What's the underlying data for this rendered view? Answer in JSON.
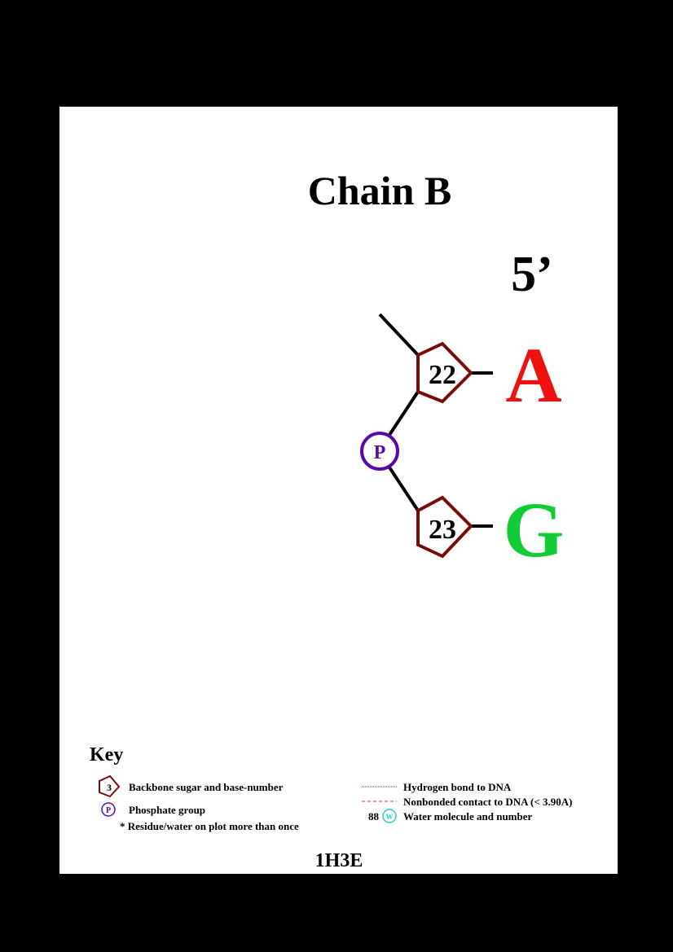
{
  "title": "Chain B",
  "end_label": "5’",
  "residues": [
    {
      "number": "22",
      "base": "A",
      "base_color": "#ee1111"
    },
    {
      "number": "23",
      "base": "G",
      "base_color": "#11cc33"
    }
  ],
  "phosphate_label": "P",
  "colors": {
    "sugar": "#7a0a0a",
    "phosphate": "#5a0aa8",
    "water": "#22ccdd",
    "hbond": "#3333cc",
    "nonbonded": "#dd3333"
  },
  "key": {
    "heading": "Key",
    "sugar_example": "3",
    "sugar_text": "Backbone sugar and base-number",
    "phosphate_example": "P",
    "phosphate_text": "Phosphate group",
    "multi_text": "* Residue/water on plot more than once",
    "hbond_text": "Hydrogen bond to DNA",
    "nonbonded_text": "Nonbonded contact to DNA (< 3.90A)",
    "water_number": "88",
    "water_example": "W",
    "water_text": "Water molecule and number"
  },
  "pdb_id": "1H3E"
}
